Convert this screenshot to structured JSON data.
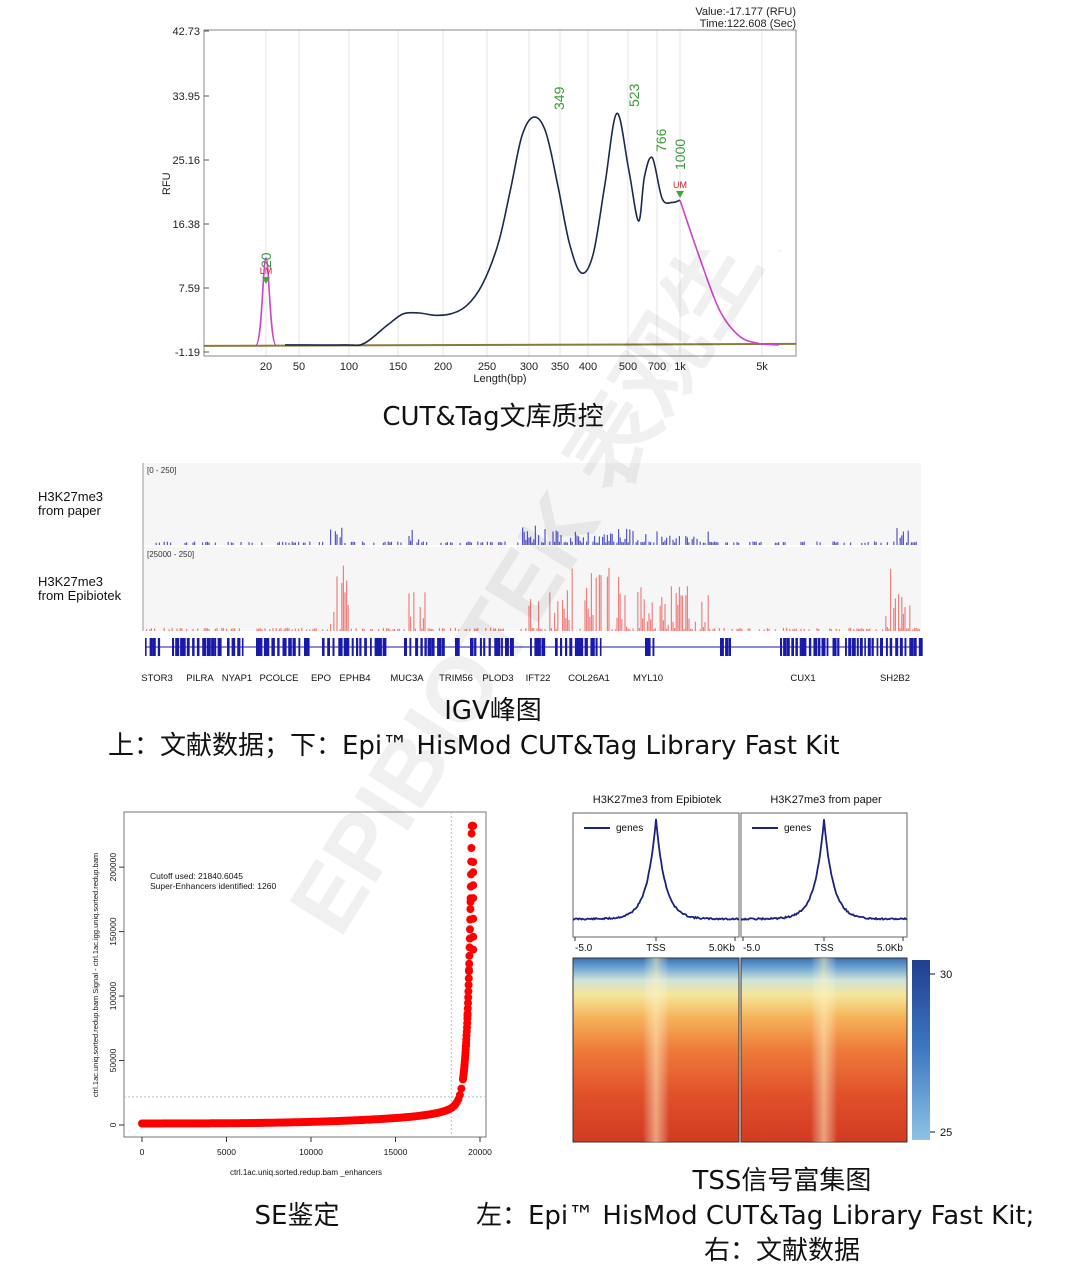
{
  "captions": {
    "qc": "CUT&Tag文库质控",
    "igv_title": "IGV峰图",
    "igv_sub": "上：文献数据；下：Epi™ HisMod CUT&Tag Library Fast Kit",
    "se": "SE鉴定",
    "tss_title": "TSS信号富集图",
    "tss_sub1": "左：Epi™ HisMod CUT&Tag Library Fast Kit;",
    "tss_sub2": "右：文献数据"
  },
  "watermark": {
    "text": "EPIBIOTEK 表观生物"
  },
  "chart_data": [
    {
      "type": "line",
      "id": "fragment-analyzer",
      "ylabel": "RFU",
      "xlabel": "Length(bp)",
      "readout_value": "Value:-17.177 (RFU)",
      "readout_time": "Time:122.608 (Sec)",
      "yticks": [
        "42.73",
        "33.95",
        "25.16",
        "16.38",
        "7.59",
        "-1.19"
      ],
      "ylim": [
        -1.19,
        42.73
      ],
      "xticks": [
        "20",
        "50",
        "100",
        "150",
        "200",
        "250",
        "300",
        "350",
        "400",
        "500",
        "700",
        "1k",
        "5k"
      ],
      "peak_labels": [
        "20",
        "349",
        "523",
        "766",
        "1000"
      ],
      "marker_labels": [
        "LM",
        "UM"
      ],
      "trace": [
        [
          0.0,
          0.3
        ],
        [
          0.02,
          0.3
        ],
        [
          0.15,
          0.3
        ],
        [
          0.2,
          0.5
        ],
        [
          0.26,
          3.0
        ],
        [
          0.3,
          4.5
        ],
        [
          0.34,
          4.6
        ],
        [
          0.38,
          4.3
        ],
        [
          0.42,
          4.5
        ],
        [
          0.46,
          5.6
        ],
        [
          0.5,
          8.5
        ],
        [
          0.54,
          14.0
        ],
        [
          0.57,
          21.0
        ],
        [
          0.6,
          28.5
        ],
        [
          0.63,
          31.0
        ],
        [
          0.66,
          29.0
        ],
        [
          0.69,
          22.0
        ],
        [
          0.72,
          14.0
        ],
        [
          0.75,
          10.0
        ],
        [
          0.78,
          12.5
        ],
        [
          0.81,
          22.0
        ],
        [
          0.84,
          31.5
        ],
        [
          0.87,
          24.0
        ],
        [
          0.895,
          17.0
        ],
        [
          0.91,
          23.0
        ],
        [
          0.93,
          25.5
        ],
        [
          0.955,
          20.0
        ],
        [
          0.98,
          19.5
        ],
        [
          1.0,
          19.8
        ]
      ],
      "trace_tail": [
        [
          1.0,
          19.8
        ],
        [
          1.05,
          12.0
        ],
        [
          1.1,
          5.0
        ],
        [
          1.15,
          1.5
        ],
        [
          1.2,
          0.5
        ],
        [
          1.25,
          0.3
        ]
      ]
    },
    {
      "type": "bar",
      "id": "igv",
      "tracks": [
        {
          "name_line1": "H3K27me3",
          "name_line2": "from paper",
          "range": "[0 - 250]",
          "color": "#5555cc"
        },
        {
          "name_line1": "H3K27me3",
          "name_line2": "from Epibiotek",
          "range": "[25000 - 250]",
          "color": "#f08080"
        }
      ],
      "genes": [
        "STOR3",
        "PILRA",
        "NYAP1",
        "PCOLCE",
        "EPO",
        "EPHB4",
        "MUC3A",
        "TRIM56",
        "PLOD3",
        "IFT22",
        "COL26A1",
        "MYL10",
        "CUX1",
        "SH2B2"
      ],
      "gene_color": "#1a1aaa"
    },
    {
      "type": "scatter",
      "id": "super-enhancer",
      "ylabel": "ctrl.1ac.uniq.sorted.redup.bam  Signal - ctrl.1ac.igg.uniq.sorted.redup.bam",
      "xlabel": "ctrl.1ac.uniq.sorted.redup.bam _enhancers",
      "xticks": [
        0,
        5000,
        10000,
        15000,
        20000
      ],
      "yticks": [
        0,
        50000,
        100000,
        150000,
        200000
      ],
      "xlim": [
        0,
        20000
      ],
      "ylim": [
        0,
        235000
      ],
      "annotation1": "Cutoff used:  21840.6045",
      "annotation2": "Super-Enhancers identified:  1260",
      "cutoff_y": 21840.6045,
      "cutoff_x": 18300,
      "color": "#ff0000"
    },
    {
      "type": "line",
      "id": "tss-profile",
      "panels": [
        {
          "title": "H3K27me3 from Epibiotek",
          "legend": "genes"
        },
        {
          "title": "H3K27me3 from paper",
          "legend": "genes"
        }
      ],
      "xticks": [
        "-5.0",
        "TSS",
        "5.0Kb"
      ],
      "color": "#1a237e"
    },
    {
      "type": "heatmap",
      "id": "tss-heatmap",
      "colorbar_ticks": [
        "30",
        "25"
      ]
    }
  ]
}
